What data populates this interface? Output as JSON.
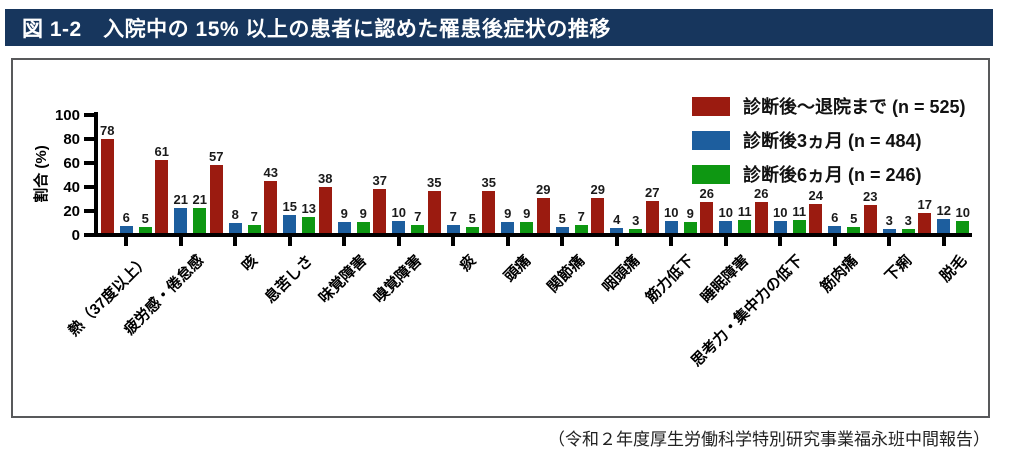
{
  "title_bar": {
    "label": "図 1-2　入院中の 15% 以上の患者に認めた罹患後症状の推移"
  },
  "source_note": "（令和２年度厚生労働科学特別研究事業福永班中間報告）",
  "colors": {
    "title_bar_bg": "#17365D",
    "title_text": "#FFFFFF",
    "box_border": "#58595B",
    "axis": "#000000",
    "series_red": "#9B1B10",
    "series_blue": "#1D5E9E",
    "series_green": "#0E9712"
  },
  "chart_data": {
    "type": "bar",
    "title": "入院中の 15% 以上の患者に認めた罹患後症状の推移",
    "xlabel": "",
    "ylabel": "割合 (%)",
    "ylim": [
      0,
      100
    ],
    "yticks": [
      0,
      20,
      40,
      60,
      80,
      100
    ],
    "grid": false,
    "legend_position": "top-right",
    "categories": [
      "熱（37度以上）",
      "疲労感・倦怠感",
      "咳",
      "息苦しさ",
      "味覚障害",
      "嗅覚障害",
      "痰",
      "頭痛",
      "関節痛",
      "咽頭痛",
      "筋力低下",
      "睡眠障害",
      "思考力・集中力の低下",
      "筋肉痛",
      "下痢",
      "脱毛"
    ],
    "series": [
      {
        "name": "診断後～退院まで (n = 525)",
        "color": "#9B1B10",
        "values": [
          78,
          61,
          57,
          43,
          38,
          37,
          35,
          35,
          29,
          29,
          27,
          26,
          26,
          24,
          23,
          17
        ]
      },
      {
        "name": "診断後3ヵ月 (n = 484)",
        "color": "#1D5E9E",
        "values": [
          6,
          21,
          8,
          15,
          9,
          10,
          7,
          9,
          5,
          4,
          10,
          10,
          10,
          6,
          3,
          12
        ]
      },
      {
        "name": "診断後6ヵ月 (n = 246)",
        "color": "#0E9712",
        "values": [
          5,
          21,
          7,
          13,
          9,
          7,
          5,
          9,
          7,
          3,
          9,
          11,
          11,
          5,
          3,
          10
        ]
      }
    ]
  }
}
